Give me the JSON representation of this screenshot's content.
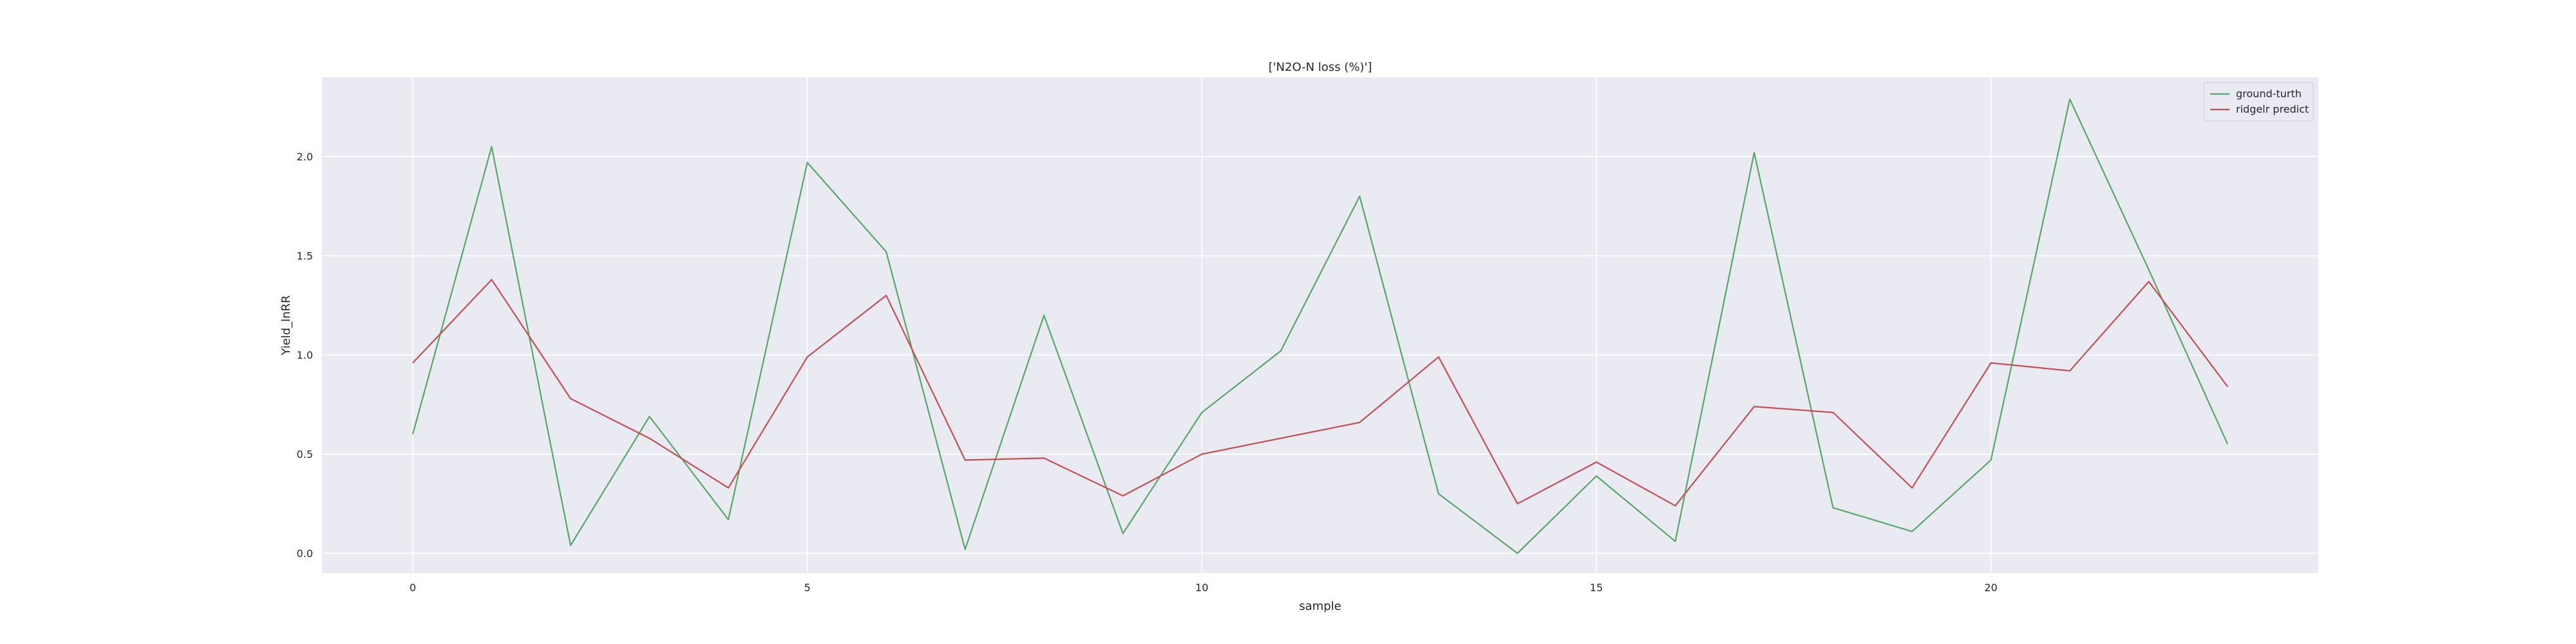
{
  "chart_data": {
    "type": "line",
    "title": "['N2O-N loss (%)']",
    "xlabel": "sample",
    "ylabel": "Yield_lnRR",
    "x": [
      0,
      1,
      2,
      3,
      4,
      5,
      6,
      7,
      8,
      9,
      10,
      11,
      12,
      13,
      14,
      15,
      16,
      17,
      18,
      19,
      20,
      21,
      22,
      23
    ],
    "xlim": [
      -1.15,
      24.15
    ],
    "ylim": [
      -0.1,
      2.4
    ],
    "xticks": [
      0,
      5,
      10,
      15,
      20
    ],
    "yticks": [
      0.0,
      0.5,
      1.0,
      1.5,
      2.0
    ],
    "xtick_labels": [
      "0",
      "5",
      "10",
      "15",
      "20"
    ],
    "ytick_labels": [
      "0.0",
      "0.5",
      "1.0",
      "1.5",
      "2.0"
    ],
    "grid": true,
    "legend_position": "top-right",
    "series": [
      {
        "name": "ground-turth",
        "color": "#55a868",
        "values": [
          0.6,
          2.05,
          0.04,
          0.69,
          0.17,
          1.97,
          1.52,
          0.02,
          1.2,
          0.1,
          0.71,
          1.02,
          1.8,
          0.3,
          0.0,
          0.39,
          0.06,
          2.02,
          0.23,
          0.11,
          0.47,
          2.29,
          1.43,
          0.55
        ]
      },
      {
        "name": "ridgelr predict",
        "color": "#c44e52",
        "values": [
          0.96,
          1.38,
          0.78,
          0.58,
          0.33,
          0.99,
          1.3,
          0.47,
          0.48,
          0.29,
          0.5,
          0.58,
          0.66,
          0.99,
          0.25,
          0.46,
          0.24,
          0.74,
          0.71,
          0.33,
          0.96,
          0.92,
          1.37,
          0.84
        ]
      }
    ]
  }
}
